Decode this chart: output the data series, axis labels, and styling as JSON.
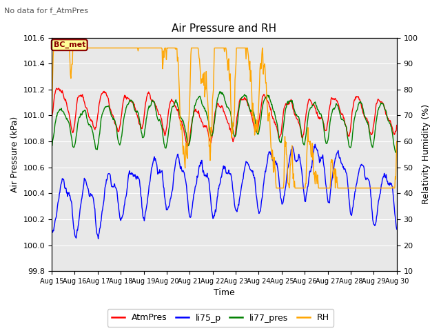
{
  "title": "Air Pressure and RH",
  "subtitle": "No data for f_AtmPres",
  "xlabel": "Time",
  "ylabel_left": "Air Pressure (kPa)",
  "ylabel_right": "Relativity Humidity (%)",
  "ylim_left": [
    99.8,
    101.6
  ],
  "ylim_right": [
    10,
    100
  ],
  "yticks_left": [
    99.8,
    100.0,
    100.2,
    100.4,
    100.6,
    100.8,
    101.0,
    101.2,
    101.4,
    101.6
  ],
  "yticks_right": [
    10,
    20,
    30,
    40,
    50,
    60,
    70,
    80,
    90,
    100
  ],
  "xtick_labels": [
    "Aug 15",
    "Aug 16",
    "Aug 17",
    "Aug 18",
    "Aug 19",
    "Aug 20",
    "Aug 21",
    "Aug 22",
    "Aug 23",
    "Aug 24",
    "Aug 25",
    "Aug 26",
    "Aug 27",
    "Aug 28",
    "Aug 29",
    "Aug 30"
  ],
  "n_days": 15,
  "legend": [
    "AtmPres",
    "li75_p",
    "li77_pres",
    "RH"
  ],
  "colors": [
    "red",
    "blue",
    "green",
    "orange"
  ],
  "annotation_box": "BC_met",
  "annotation_box_color": "#ffff99",
  "annotation_box_border": "#8b0000",
  "plot_bg_color": "#e8e8e8",
  "grid_color": "#ffffff",
  "linewidth": 1.0
}
